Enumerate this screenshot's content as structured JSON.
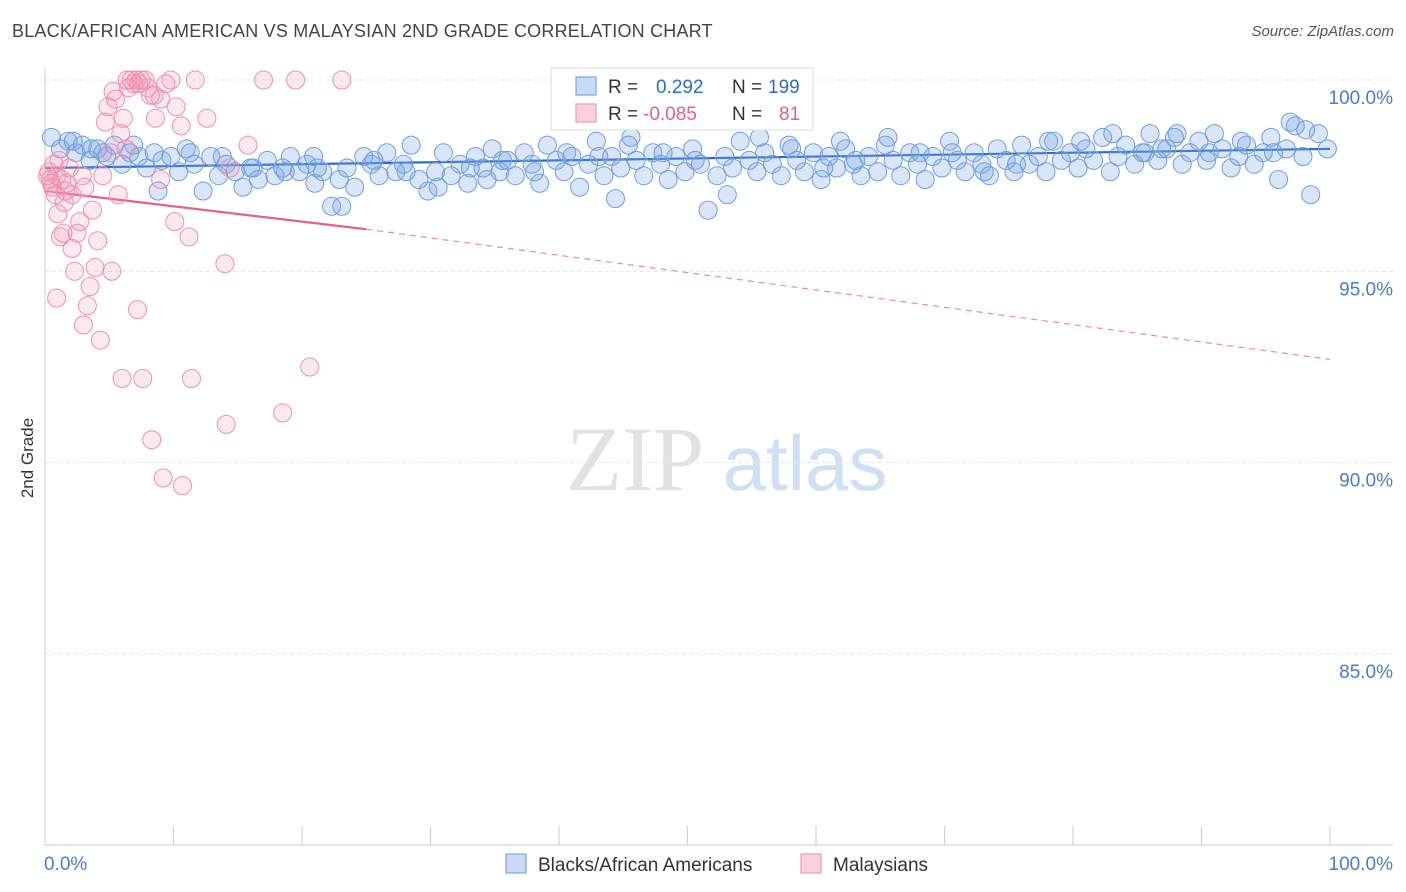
{
  "header": {
    "title": "BLACK/AFRICAN AMERICAN VS MALAYSIAN 2ND GRADE CORRELATION CHART",
    "source": "Source: ZipAtlas.com"
  },
  "watermark": {
    "zip": "ZIP",
    "atlas": "atlas"
  },
  "legend": {
    "r_label": "R =",
    "n_label": "N =",
    "rows": [
      {
        "name": "Blacks/African Americans",
        "r": "0.292",
        "n": "199",
        "color": "#7aa7e6"
      },
      {
        "name": "Malaysians",
        "r": "-0.085",
        "n": "81",
        "color": "#f09ab6"
      }
    ]
  },
  "chart_data": {
    "type": "scatter",
    "title": "BLACK/AFRICAN AMERICAN VS MALAYSIAN 2ND GRADE CORRELATION CHART",
    "xlabel": "",
    "ylabel": "2nd Grade",
    "xlim": [
      0,
      100
    ],
    "ylim": [
      80.2,
      100.7
    ],
    "x_tick_labels": [
      "0.0%",
      "100.0%"
    ],
    "y_ticks": [
      {
        "value": 85,
        "label": "85.0%"
      },
      {
        "value": 90,
        "label": "90.0%"
      },
      {
        "value": 95,
        "label": "95.0%"
      },
      {
        "value": 100,
        "label": "100.0%"
      }
    ],
    "grid": true,
    "series": [
      {
        "name": "Blacks/African Americans",
        "color": "#7aa7e6",
        "trend": {
          "x0": 0,
          "y0": 97.7,
          "x1": 100,
          "y1": 98.2
        },
        "points": [
          [
            0.5,
            98.5
          ],
          [
            1.2,
            98.2
          ],
          [
            1.8,
            98.4
          ],
          [
            2.4,
            98.1
          ],
          [
            2.9,
            98.3
          ],
          [
            3.5,
            97.9
          ],
          [
            4.1,
            98.2
          ],
          [
            4.8,
            98.0
          ],
          [
            5.4,
            98.3
          ],
          [
            6.0,
            97.8
          ],
          [
            6.6,
            98.1
          ],
          [
            7.3,
            98.0
          ],
          [
            7.9,
            97.7
          ],
          [
            8.5,
            98.1
          ],
          [
            9.1,
            97.9
          ],
          [
            9.8,
            98.0
          ],
          [
            10.4,
            97.6
          ],
          [
            11.0,
            98.2
          ],
          [
            11.6,
            97.8
          ],
          [
            12.3,
            97.1
          ],
          [
            12.9,
            98.0
          ],
          [
            13.5,
            97.5
          ],
          [
            14.1,
            97.8
          ],
          [
            14.8,
            97.6
          ],
          [
            15.4,
            97.2
          ],
          [
            16.0,
            97.7
          ],
          [
            16.6,
            97.4
          ],
          [
            17.3,
            97.9
          ],
          [
            17.9,
            97.5
          ],
          [
            18.5,
            97.7
          ],
          [
            19.1,
            98.0
          ],
          [
            19.8,
            97.6
          ],
          [
            20.4,
            97.8
          ],
          [
            21.0,
            97.3
          ],
          [
            21.6,
            97.6
          ],
          [
            22.3,
            96.7
          ],
          [
            22.9,
            97.4
          ],
          [
            23.5,
            97.7
          ],
          [
            24.1,
            97.2
          ],
          [
            24.8,
            98.0
          ],
          [
            25.4,
            97.8
          ],
          [
            26.0,
            97.5
          ],
          [
            26.6,
            98.1
          ],
          [
            27.3,
            97.6
          ],
          [
            27.9,
            97.8
          ],
          [
            28.5,
            98.3
          ],
          [
            29.1,
            97.4
          ],
          [
            29.8,
            97.1
          ],
          [
            30.4,
            97.6
          ],
          [
            31.0,
            98.1
          ],
          [
            31.6,
            97.5
          ],
          [
            32.3,
            97.8
          ],
          [
            32.9,
            97.3
          ],
          [
            33.5,
            98.0
          ],
          [
            34.1,
            97.7
          ],
          [
            34.8,
            98.2
          ],
          [
            35.4,
            97.6
          ],
          [
            36.0,
            97.9
          ],
          [
            36.6,
            97.5
          ],
          [
            37.3,
            98.1
          ],
          [
            37.9,
            97.8
          ],
          [
            38.5,
            97.3
          ],
          [
            39.1,
            98.3
          ],
          [
            39.8,
            97.9
          ],
          [
            40.4,
            97.6
          ],
          [
            41.0,
            98.0
          ],
          [
            41.6,
            97.2
          ],
          [
            42.3,
            97.8
          ],
          [
            42.9,
            98.4
          ],
          [
            43.5,
            97.5
          ],
          [
            44.1,
            98.0
          ],
          [
            44.8,
            97.7
          ],
          [
            45.4,
            98.3
          ],
          [
            46.0,
            97.9
          ],
          [
            46.6,
            97.5
          ],
          [
            47.3,
            98.1
          ],
          [
            47.9,
            97.8
          ],
          [
            48.5,
            97.4
          ],
          [
            49.1,
            98.0
          ],
          [
            49.8,
            97.6
          ],
          [
            50.4,
            98.2
          ],
          [
            51.0,
            97.8
          ],
          [
            51.6,
            96.6
          ],
          [
            52.3,
            97.5
          ],
          [
            52.9,
            98.0
          ],
          [
            53.5,
            97.7
          ],
          [
            54.1,
            98.4
          ],
          [
            54.8,
            97.9
          ],
          [
            55.4,
            97.6
          ],
          [
            56.0,
            98.1
          ],
          [
            56.6,
            97.8
          ],
          [
            57.3,
            97.5
          ],
          [
            57.9,
            98.3
          ],
          [
            58.5,
            97.9
          ],
          [
            59.1,
            97.6
          ],
          [
            59.8,
            98.1
          ],
          [
            60.4,
            97.4
          ],
          [
            61.0,
            98.0
          ],
          [
            61.6,
            97.7
          ],
          [
            62.3,
            98.2
          ],
          [
            62.9,
            97.8
          ],
          [
            63.5,
            97.5
          ],
          [
            64.1,
            98.0
          ],
          [
            64.8,
            97.6
          ],
          [
            65.4,
            98.3
          ],
          [
            66.0,
            97.9
          ],
          [
            66.6,
            97.5
          ],
          [
            67.3,
            98.1
          ],
          [
            67.9,
            97.8
          ],
          [
            68.5,
            97.4
          ],
          [
            69.1,
            98.0
          ],
          [
            69.8,
            97.7
          ],
          [
            70.4,
            98.4
          ],
          [
            71.0,
            97.9
          ],
          [
            71.6,
            97.6
          ],
          [
            72.3,
            98.1
          ],
          [
            72.9,
            97.8
          ],
          [
            73.5,
            97.5
          ],
          [
            74.1,
            98.2
          ],
          [
            74.8,
            97.9
          ],
          [
            75.4,
            97.6
          ],
          [
            76.0,
            98.3
          ],
          [
            76.6,
            97.8
          ],
          [
            77.3,
            98.0
          ],
          [
            77.9,
            97.6
          ],
          [
            78.5,
            98.4
          ],
          [
            79.1,
            97.9
          ],
          [
            79.8,
            98.1
          ],
          [
            80.4,
            97.7
          ],
          [
            81.0,
            98.2
          ],
          [
            81.6,
            97.9
          ],
          [
            82.3,
            98.5
          ],
          [
            82.9,
            97.6
          ],
          [
            83.5,
            98.0
          ],
          [
            84.1,
            98.3
          ],
          [
            84.8,
            97.8
          ],
          [
            85.4,
            98.1
          ],
          [
            86.0,
            98.6
          ],
          [
            86.6,
            97.9
          ],
          [
            87.3,
            98.2
          ],
          [
            87.9,
            98.5
          ],
          [
            88.5,
            97.8
          ],
          [
            89.1,
            98.1
          ],
          [
            89.8,
            98.4
          ],
          [
            90.4,
            97.9
          ],
          [
            91.0,
            98.6
          ],
          [
            91.6,
            98.2
          ],
          [
            92.3,
            97.7
          ],
          [
            92.9,
            98.0
          ],
          [
            93.5,
            98.3
          ],
          [
            94.1,
            97.8
          ],
          [
            94.8,
            98.1
          ],
          [
            95.4,
            98.5
          ],
          [
            96.0,
            97.4
          ],
          [
            96.6,
            98.2
          ],
          [
            97.3,
            98.8
          ],
          [
            97.9,
            98.0
          ],
          [
            98.5,
            97.0
          ],
          [
            99.1,
            98.6
          ],
          [
            99.8,
            98.2
          ],
          [
            2.2,
            98.4
          ],
          [
            4.5,
            98.1
          ],
          [
            6.9,
            98.3
          ],
          [
            8.8,
            97.1
          ],
          [
            11.3,
            98.1
          ],
          [
            13.8,
            98.0
          ],
          [
            16.2,
            97.7
          ],
          [
            18.7,
            97.6
          ],
          [
            21.2,
            97.7
          ],
          [
            23.1,
            96.7
          ],
          [
            25.6,
            97.9
          ],
          [
            28.1,
            97.6
          ],
          [
            30.6,
            97.2
          ],
          [
            33.1,
            97.7
          ],
          [
            35.6,
            97.9
          ],
          [
            38.1,
            97.6
          ],
          [
            40.6,
            98.1
          ],
          [
            43.1,
            98.0
          ],
          [
            45.6,
            98.5
          ],
          [
            48.1,
            98.1
          ],
          [
            50.6,
            97.9
          ],
          [
            53.1,
            97.0
          ],
          [
            55.6,
            98.5
          ],
          [
            58.1,
            98.2
          ],
          [
            60.6,
            97.7
          ],
          [
            63.1,
            97.9
          ],
          [
            65.6,
            98.5
          ],
          [
            68.1,
            98.1
          ],
          [
            70.6,
            98.1
          ],
          [
            73.1,
            97.6
          ],
          [
            75.6,
            97.8
          ],
          [
            78.1,
            98.4
          ],
          [
            80.6,
            98.4
          ],
          [
            83.1,
            98.6
          ],
          [
            85.6,
            98.1
          ],
          [
            88.1,
            98.6
          ],
          [
            90.6,
            98.1
          ],
          [
            93.1,
            98.4
          ],
          [
            95.6,
            98.1
          ],
          [
            98.1,
            98.7
          ],
          [
            3.6,
            98.2
          ],
          [
            20.9,
            98.0
          ],
          [
            44.4,
            96.9
          ],
          [
            61.9,
            98.4
          ],
          [
            86.9,
            98.2
          ],
          [
            96.9,
            98.9
          ],
          [
            34.4,
            97.4
          ]
        ]
      },
      {
        "name": "Malaysians",
        "color": "#f09ab6",
        "trend": {
          "x0": 0,
          "y0": 97.1,
          "x1": 25,
          "y1": 96.1
        },
        "trend_dashed": {
          "x0": 25,
          "y0": 96.1,
          "x1": 100,
          "y1": 92.7
        },
        "points": [
          [
            0.3,
            97.6
          ],
          [
            0.5,
            97.3
          ],
          [
            0.7,
            97.8
          ],
          [
            0.4,
            97.4
          ],
          [
            0.6,
            97.2
          ],
          [
            0.9,
            97.5
          ],
          [
            1.1,
            97.9
          ],
          [
            1.3,
            97.4
          ],
          [
            0.8,
            97.0
          ],
          [
            1.0,
            96.5
          ],
          [
            1.2,
            95.9
          ],
          [
            1.5,
            96.8
          ],
          [
            1.7,
            97.3
          ],
          [
            1.9,
            97.7
          ],
          [
            2.1,
            95.6
          ],
          [
            2.3,
            95.0
          ],
          [
            2.5,
            96.0
          ],
          [
            2.7,
            96.3
          ],
          [
            2.9,
            97.5
          ],
          [
            3.1,
            97.2
          ],
          [
            3.3,
            94.1
          ],
          [
            3.5,
            94.6
          ],
          [
            3.7,
            96.6
          ],
          [
            3.9,
            95.1
          ],
          [
            4.1,
            95.8
          ],
          [
            4.3,
            93.2
          ],
          [
            4.5,
            97.5
          ],
          [
            4.7,
            98.9
          ],
          [
            4.9,
            99.3
          ],
          [
            5.1,
            98.1
          ],
          [
            5.3,
            99.7
          ],
          [
            5.5,
            99.5
          ],
          [
            5.7,
            97.0
          ],
          [
            5.9,
            98.6
          ],
          [
            6.1,
            99.0
          ],
          [
            6.3,
            98.2
          ],
          [
            6.5,
            99.8
          ],
          [
            6.7,
            100.0
          ],
          [
            6.9,
            99.9
          ],
          [
            7.1,
            100.0
          ],
          [
            7.3,
            99.9
          ],
          [
            7.5,
            100.0
          ],
          [
            7.8,
            100.0
          ],
          [
            8.0,
            99.8
          ],
          [
            8.2,
            99.6
          ],
          [
            8.6,
            99.0
          ],
          [
            9.0,
            99.5
          ],
          [
            9.4,
            99.9
          ],
          [
            9.8,
            100.0
          ],
          [
            10.2,
            99.3
          ],
          [
            10.6,
            98.8
          ],
          [
            10.1,
            96.3
          ],
          [
            11.2,
            95.9
          ],
          [
            14.0,
            95.2
          ],
          [
            14.4,
            97.7
          ],
          [
            15.8,
            98.3
          ],
          [
            6.0,
            92.2
          ],
          [
            7.6,
            92.2
          ],
          [
            11.4,
            92.2
          ],
          [
            8.3,
            90.6
          ],
          [
            9.2,
            89.6
          ],
          [
            10.7,
            89.4
          ],
          [
            14.1,
            91.0
          ],
          [
            18.5,
            91.3
          ],
          [
            20.6,
            92.5
          ],
          [
            7.2,
            94.0
          ],
          [
            5.2,
            95.0
          ],
          [
            2.1,
            97.0
          ],
          [
            1.4,
            96.0
          ],
          [
            0.2,
            97.5
          ],
          [
            0.9,
            94.3
          ],
          [
            3.0,
            93.6
          ],
          [
            8.5,
            99.6
          ],
          [
            17.0,
            100.0
          ],
          [
            19.5,
            100.0
          ],
          [
            23.1,
            100.0
          ],
          [
            11.7,
            100.0
          ],
          [
            9.0,
            97.4
          ],
          [
            6.4,
            100.0
          ],
          [
            12.6,
            99.0
          ],
          [
            1.6,
            97.1
          ]
        ]
      }
    ]
  }
}
